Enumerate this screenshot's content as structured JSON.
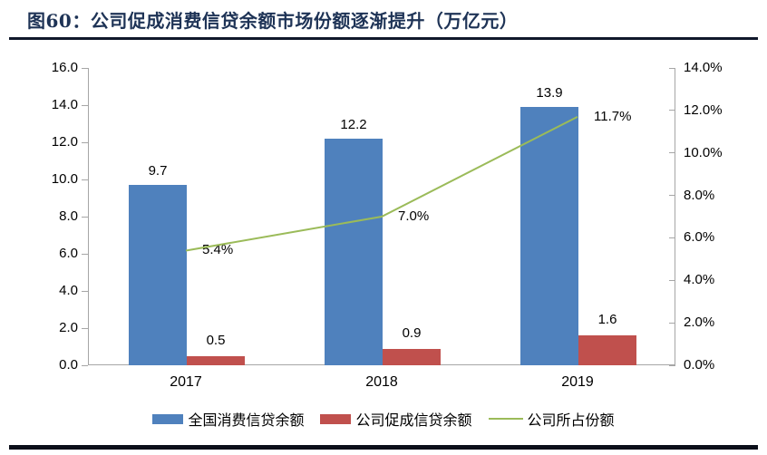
{
  "header": {
    "title": "图60：公司促成消费信贷余额市场份额逐渐提升（万亿元）"
  },
  "colors": {
    "title": "#1e3356",
    "title_rule": "#10182b",
    "bottom_rule": "#0b0f1a",
    "axis_line": "#a6a6a6",
    "label_text": "#000000"
  },
  "chart_data": {
    "type": "bar",
    "subtype": "grouped-bars-with-line",
    "title": "图60：公司促成消费信贷余额市场份额逐渐提升（万亿元）",
    "categories": [
      "2017",
      "2018",
      "2019"
    ],
    "series": [
      {
        "key": "national-consumer-credit",
        "name": "全国消费信贷余额",
        "type": "bar",
        "axis": "left",
        "color": "#4f81bd",
        "values": [
          9.7,
          12.2,
          13.9
        ],
        "labels": [
          "9.7",
          "12.2",
          "13.9"
        ]
      },
      {
        "key": "company-facilitated-credit",
        "name": "公司促成信贷余额",
        "type": "bar",
        "axis": "left",
        "color": "#c0504d",
        "values": [
          0.5,
          0.9,
          1.6
        ],
        "labels": [
          "0.5",
          "0.9",
          "1.6"
        ]
      },
      {
        "key": "company-market-share",
        "name": "公司所占份额",
        "type": "line",
        "axis": "right",
        "color": "#9bbb59",
        "values": [
          5.4,
          7.0,
          11.7
        ],
        "labels": [
          "5.4%",
          "7.0%",
          "11.7%"
        ]
      }
    ],
    "left_axis": {
      "min": 0,
      "max": 16,
      "step": 2,
      "ticks": [
        "16.0",
        "14.0",
        "12.0",
        "10.0",
        "8.0",
        "6.0",
        "4.0",
        "2.0",
        "0.0"
      ]
    },
    "right_axis": {
      "min": 0,
      "max": 14,
      "step": 2,
      "ticks": [
        "14.0%",
        "12.0%",
        "10.0%",
        "8.0%",
        "6.0%",
        "4.0%",
        "2.0%",
        "0.0%"
      ]
    },
    "grid": false,
    "legend_position": "bottom"
  }
}
